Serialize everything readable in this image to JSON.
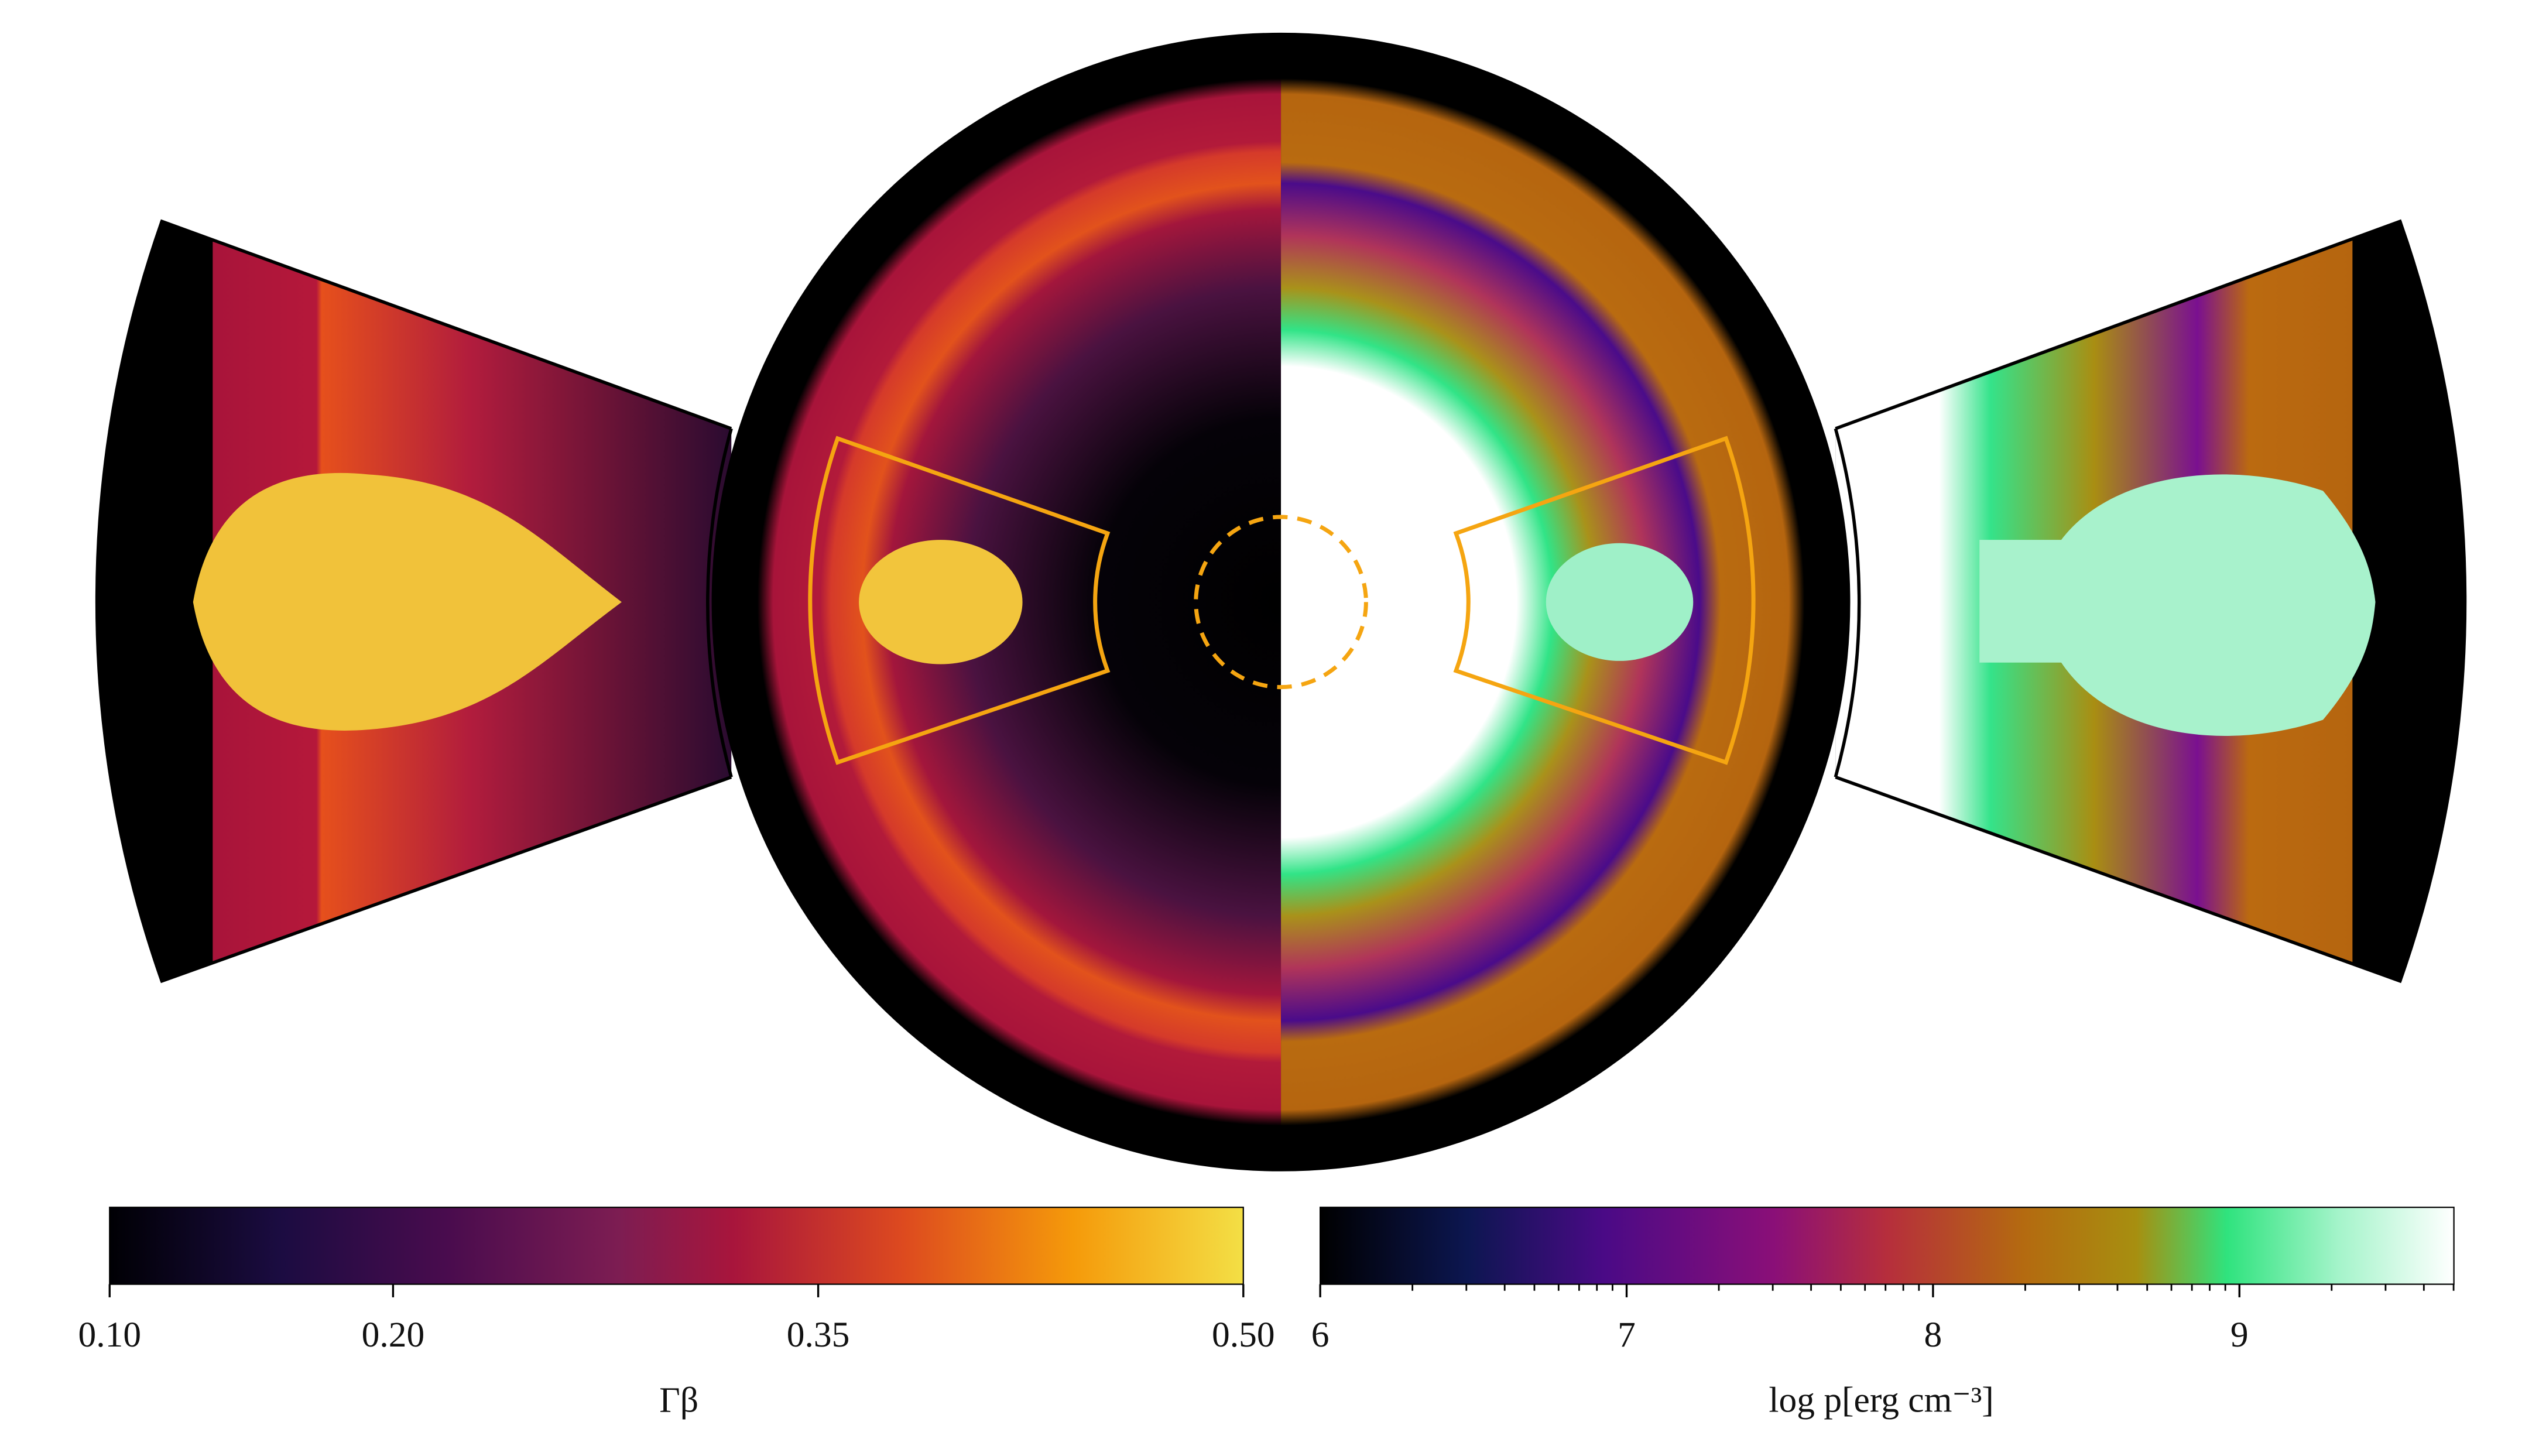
{
  "chart_data": [
    {
      "type": "colorbar",
      "label": "Γβ",
      "xlim": [
        0.1,
        0.5
      ],
      "xticks": [
        {
          "value": 0.1,
          "label": "0.10"
        },
        {
          "value": 0.2,
          "label": "0.20"
        },
        {
          "value": 0.35,
          "label": "0.35"
        },
        {
          "value": 0.5,
          "label": "0.50"
        }
      ]
    },
    {
      "type": "colorbar",
      "label": "log p[erg cm⁻³]",
      "xlim": [
        6,
        9.7
      ],
      "xticks": [
        6,
        7,
        8,
        9
      ],
      "xticks_minor": [
        6.301,
        6.477,
        6.602,
        6.699,
        6.778,
        6.845,
        6.903,
        6.954,
        7.301,
        7.477,
        7.602,
        7.699,
        7.778,
        7.845,
        7.903,
        7.954,
        8.301,
        8.477,
        8.602,
        8.699,
        8.778,
        8.845,
        8.903,
        8.954,
        9.301,
        9.477,
        9.602,
        9.699
      ]
    }
  ]
}
